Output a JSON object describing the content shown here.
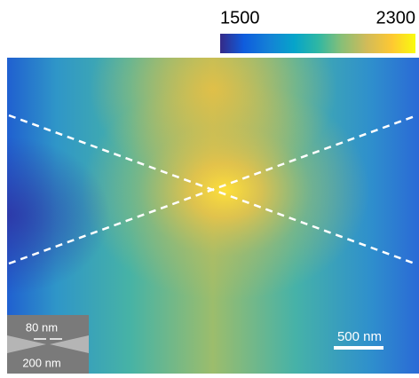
{
  "colorbar": {
    "min": 1500,
    "max": 2300
  },
  "scale_bar": {
    "label": "500 nm"
  },
  "inset": {
    "gap_label": "80 nm",
    "width_label": "200 nm"
  }
}
